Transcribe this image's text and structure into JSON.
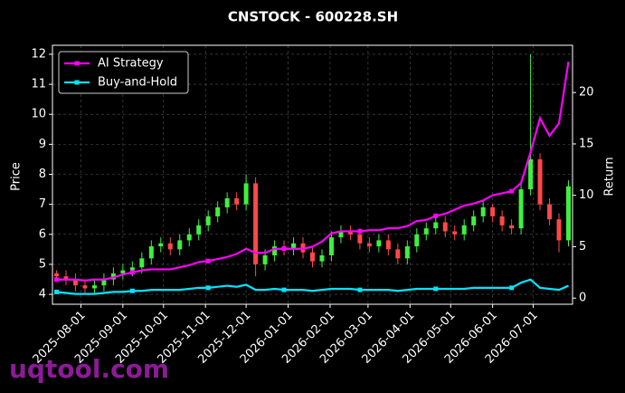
{
  "chart_data": {
    "type": "candlestick",
    "title": "CNSTOCK - 600228.SH",
    "ylabel": "Price",
    "y2label": "Return",
    "watermark": "uqtool.com",
    "grid": true,
    "legend_position": "upper left",
    "up_color": "#3ef03e",
    "down_color": "#ff4848",
    "x": [
      "2025-07-14",
      "2025-07-21",
      "2025-07-28",
      "2025-08-04",
      "2025-08-11",
      "2025-08-18",
      "2025-08-25",
      "2025-09-01",
      "2025-09-08",
      "2025-09-15",
      "2025-09-22",
      "2025-09-29",
      "2025-10-06",
      "2025-10-13",
      "2025-10-20",
      "2025-10-27",
      "2025-11-03",
      "2025-11-10",
      "2025-11-17",
      "2025-11-24",
      "2025-12-01",
      "2025-12-08",
      "2025-12-15",
      "2025-12-22",
      "2025-12-29",
      "2026-01-05",
      "2026-01-12",
      "2026-01-19",
      "2026-01-26",
      "2026-02-02",
      "2026-02-09",
      "2026-02-16",
      "2026-02-23",
      "2026-03-02",
      "2026-03-09",
      "2026-03-16",
      "2026-03-23",
      "2026-03-30",
      "2026-04-06",
      "2026-04-13",
      "2026-04-20",
      "2026-04-27",
      "2026-05-04",
      "2026-05-11",
      "2026-05-18",
      "2026-05-25",
      "2026-06-01",
      "2026-06-08",
      "2026-06-15",
      "2026-06-22",
      "2026-06-29",
      "2026-07-06",
      "2026-07-13",
      "2026-07-20",
      "2026-07-27"
    ],
    "open": [
      4.7,
      4.6,
      4.5,
      4.3,
      4.2,
      4.3,
      4.5,
      4.7,
      4.8,
      4.9,
      5.2,
      5.6,
      5.7,
      5.5,
      5.8,
      6.0,
      6.3,
      6.6,
      6.9,
      7.2,
      7.0,
      7.7,
      5.0,
      5.3,
      5.6,
      5.5,
      5.7,
      5.4,
      5.1,
      5.3,
      5.9,
      6.1,
      6.0,
      5.7,
      5.6,
      5.8,
      5.5,
      5.2,
      5.6,
      6.0,
      6.2,
      6.4,
      6.1,
      6.0,
      6.3,
      6.6,
      6.9,
      6.6,
      6.3,
      6.2,
      7.5,
      8.5,
      7.0,
      6.5,
      5.8
    ],
    "high": [
      4.8,
      4.8,
      4.7,
      4.5,
      4.5,
      4.7,
      4.9,
      5.0,
      5.1,
      5.4,
      5.8,
      5.9,
      5.9,
      6.0,
      6.2,
      6.5,
      6.8,
      7.1,
      7.4,
      7.4,
      8.0,
      7.9,
      5.5,
      5.8,
      5.8,
      5.9,
      5.9,
      5.6,
      5.5,
      6.1,
      6.3,
      6.3,
      6.2,
      5.9,
      6.0,
      6.0,
      5.7,
      5.8,
      6.2,
      6.4,
      6.6,
      6.6,
      6.3,
      6.5,
      6.8,
      7.1,
      7.0,
      6.8,
      6.5,
      7.7,
      12.0,
      8.7,
      7.2,
      6.7,
      7.8
    ],
    "low": [
      4.5,
      4.3,
      4.1,
      4.0,
      4.0,
      4.1,
      4.3,
      4.5,
      4.6,
      4.7,
      5.0,
      5.4,
      5.3,
      5.3,
      5.6,
      5.8,
      6.1,
      6.4,
      6.7,
      6.8,
      6.8,
      4.6,
      4.8,
      5.1,
      5.3,
      5.3,
      5.2,
      4.9,
      4.9,
      5.1,
      5.7,
      5.8,
      5.5,
      5.4,
      5.4,
      5.3,
      5.0,
      5.0,
      5.4,
      5.8,
      6.0,
      5.9,
      5.8,
      5.8,
      6.1,
      6.4,
      6.4,
      6.1,
      6.0,
      6.0,
      7.3,
      6.8,
      6.3,
      5.4,
      5.6
    ],
    "close": [
      4.6,
      4.5,
      4.3,
      4.2,
      4.3,
      4.5,
      4.7,
      4.8,
      4.9,
      5.2,
      5.6,
      5.7,
      5.5,
      5.8,
      6.0,
      6.3,
      6.6,
      6.9,
      7.2,
      7.0,
      7.7,
      5.0,
      5.3,
      5.6,
      5.5,
      5.7,
      5.4,
      5.1,
      5.3,
      5.9,
      6.1,
      6.0,
      5.7,
      5.6,
      5.8,
      5.5,
      5.2,
      5.6,
      6.0,
      6.2,
      6.4,
      6.1,
      6.0,
      6.3,
      6.6,
      6.9,
      6.6,
      6.3,
      6.2,
      7.5,
      8.5,
      7.0,
      6.5,
      5.8,
      7.6
    ],
    "series": [
      {
        "name": "AI Strategy",
        "color": "#ff00ff",
        "axis": "y2",
        "values": [
          1.8,
          1.8,
          1.8,
          1.7,
          1.8,
          1.8,
          2.0,
          2.3,
          2.5,
          2.7,
          2.8,
          2.8,
          2.8,
          3.0,
          3.2,
          3.5,
          3.6,
          3.8,
          4.0,
          4.3,
          4.8,
          4.4,
          4.4,
          4.8,
          4.8,
          4.8,
          4.8,
          5.0,
          5.5,
          6.3,
          6.5,
          6.5,
          6.5,
          6.6,
          6.6,
          6.8,
          6.8,
          7.0,
          7.5,
          7.6,
          8.0,
          8.2,
          8.6,
          9.0,
          9.2,
          9.5,
          10.0,
          10.2,
          10.4,
          11.2,
          14.2,
          17.5,
          15.8,
          17.0,
          23.0
        ]
      },
      {
        "name": "Buy-and-Hold",
        "color": "#00e5ff",
        "axis": "y2",
        "values": [
          0.6,
          0.5,
          0.4,
          0.4,
          0.4,
          0.5,
          0.6,
          0.6,
          0.7,
          0.7,
          0.8,
          0.8,
          0.8,
          0.8,
          0.9,
          1.0,
          1.0,
          1.1,
          1.2,
          1.1,
          1.3,
          0.8,
          0.8,
          0.9,
          0.8,
          0.8,
          0.8,
          0.7,
          0.8,
          0.9,
          0.9,
          0.9,
          0.8,
          0.8,
          0.8,
          0.8,
          0.7,
          0.8,
          0.9,
          0.9,
          0.9,
          0.9,
          0.9,
          0.9,
          1.0,
          1.0,
          1.0,
          1.0,
          1.0,
          1.5,
          1.8,
          1.0,
          0.9,
          0.8,
          1.2
        ]
      }
    ],
    "xlim": [
      "2025-07-11",
      "2026-07-30"
    ],
    "xticks": [
      "2025-08-01",
      "2025-09-01",
      "2025-10-01",
      "2025-11-01",
      "2025-12-01",
      "2026-01-01",
      "2026-02-01",
      "2026-03-01",
      "2026-04-01",
      "2026-05-01",
      "2026-06-01",
      "2026-07-01"
    ],
    "ylim": [
      3.67,
      12.3
    ],
    "yticks": [
      4,
      5,
      6,
      7,
      8,
      9,
      10,
      11,
      12
    ],
    "y2lim": [
      -0.6,
      24.6
    ],
    "y2ticks": [
      0,
      5,
      10,
      15,
      20
    ]
  }
}
